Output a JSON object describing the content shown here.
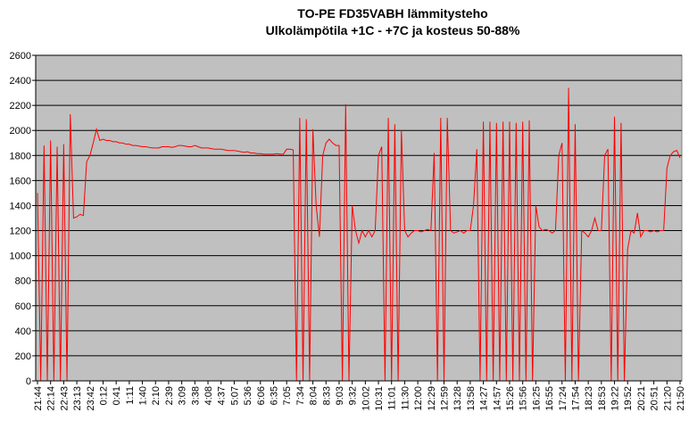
{
  "chart_data": {
    "type": "line",
    "title": "TO-PE FD35VABH lämmitysteho",
    "subtitle": "Ulkolämpötila  +1C - +7C ja kosteus 50-88%",
    "categories": [
      "21:44",
      null,
      null,
      null,
      "22:14",
      null,
      null,
      null,
      "22:43",
      null,
      null,
      null,
      "23:13",
      null,
      null,
      null,
      "23:42",
      null,
      null,
      null,
      "0:12",
      null,
      null,
      null,
      "0:41",
      null,
      null,
      null,
      "1:11",
      null,
      null,
      null,
      "1:40",
      null,
      null,
      null,
      "2:10",
      null,
      null,
      null,
      "2:39",
      null,
      null,
      null,
      "3:09",
      null,
      null,
      null,
      "3:38",
      null,
      null,
      null,
      "4:08",
      null,
      null,
      null,
      "4:37",
      null,
      null,
      null,
      "5:07",
      null,
      null,
      null,
      "5:36",
      null,
      null,
      null,
      "6:06",
      null,
      null,
      null,
      "6:35",
      null,
      null,
      null,
      "7:05",
      null,
      null,
      null,
      "7:34",
      null,
      null,
      null,
      "8:04",
      null,
      null,
      null,
      "8:33",
      null,
      null,
      null,
      "9:03",
      null,
      null,
      null,
      "9:32",
      null,
      null,
      null,
      "10:02",
      null,
      null,
      null,
      "10:31",
      null,
      null,
      null,
      "11:01",
      null,
      null,
      null,
      "11:30",
      null,
      null,
      null,
      "12:00",
      null,
      null,
      null,
      "12:29",
      null,
      null,
      null,
      "12:59",
      null,
      null,
      null,
      "13:28",
      null,
      null,
      null,
      "13:58",
      null,
      null,
      null,
      "14:27",
      null,
      null,
      null,
      "14:57",
      null,
      null,
      null,
      "15:26",
      null,
      null,
      null,
      "15:56",
      null,
      null,
      null,
      "16:25",
      null,
      null,
      null,
      "16:55",
      null,
      null,
      null,
      "17:24",
      null,
      null,
      null,
      "17:54",
      null,
      null,
      null,
      "18:23",
      null,
      null,
      null,
      "18:53",
      null,
      null,
      null,
      "19:22",
      null,
      null,
      null,
      "19:52",
      null,
      null,
      null,
      "20:21",
      null,
      null,
      null,
      "20:51",
      null,
      null,
      null,
      "21:20",
      null,
      null,
      null,
      "21:50"
    ],
    "values": [
      1500,
      0,
      1880,
      0,
      1920,
      0,
      1870,
      0,
      1890,
      0,
      2130,
      1300,
      1310,
      1330,
      1320,
      1750,
      1800,
      1900,
      2010,
      1920,
      1930,
      1920,
      1920,
      1910,
      1910,
      1900,
      1900,
      1890,
      1890,
      1880,
      1880,
      1875,
      1870,
      1870,
      1865,
      1860,
      1860,
      1860,
      1870,
      1870,
      1870,
      1865,
      1870,
      1880,
      1880,
      1875,
      1870,
      1870,
      1880,
      1870,
      1860,
      1860,
      1860,
      1855,
      1850,
      1850,
      1850,
      1845,
      1840,
      1840,
      1840,
      1835,
      1830,
      1825,
      1830,
      1820,
      1820,
      1815,
      1815,
      1810,
      1810,
      1810,
      1810,
      1815,
      1810,
      1810,
      1850,
      1850,
      1845,
      0,
      2100,
      0,
      2090,
      0,
      2010,
      1400,
      1150,
      1800,
      1900,
      1930,
      1900,
      1880,
      1880,
      0,
      2210,
      0,
      1400,
      1200,
      1100,
      1200,
      1150,
      1200,
      1150,
      1200,
      1800,
      1870,
      0,
      2100,
      0,
      2050,
      0,
      2000,
      1200,
      1150,
      1180,
      1200,
      1200,
      1190,
      1200,
      1210,
      1200,
      1820,
      0,
      2100,
      0,
      2100,
      1200,
      1180,
      1190,
      1200,
      1180,
      1200,
      1200,
      1400,
      1850,
      0,
      2070,
      0,
      2070,
      0,
      2060,
      0,
      2070,
      0,
      2070,
      0,
      2060,
      0,
      2070,
      0,
      2080,
      0,
      1400,
      1230,
      1200,
      1210,
      1200,
      1180,
      1200,
      1800,
      1900,
      0,
      2340,
      0,
      2050,
      0,
      1200,
      1180,
      1150,
      1200,
      1300,
      1200,
      1200,
      1800,
      1850,
      0,
      2110,
      0,
      2060,
      0,
      1050,
      1200,
      1180,
      1340,
      1150,
      1200,
      1200,
      1190,
      1200,
      1190,
      1200,
      1200,
      1700,
      1800,
      1830,
      1840,
      1780
    ],
    "color": "#ff0000",
    "ylim": [
      0,
      2600
    ],
    "yticks": [
      0,
      200,
      400,
      600,
      800,
      1000,
      1200,
      1400,
      1600,
      1800,
      2000,
      2200,
      2400,
      2600
    ],
    "grid": true
  }
}
